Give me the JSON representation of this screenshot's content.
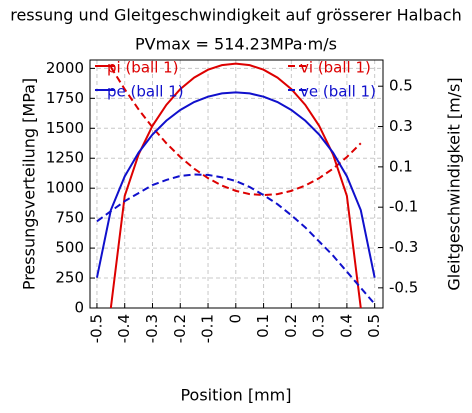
{
  "chart_data": {
    "type": "line",
    "title": "ressung und Gleitgeschwindigkeit auf grösserer Halbach",
    "subtitle": "PVmax = 514.23MPa·m/s",
    "x_label": "Position [mm]",
    "y_label": "Pressungsverteilung [MPa]",
    "y2_label": "Gleitgeschwindigkeit [m/s]",
    "x": [
      -0.5,
      -0.45,
      -0.4,
      -0.35,
      -0.3,
      -0.25,
      -0.2,
      -0.15,
      -0.1,
      -0.05,
      0,
      0.05,
      0.1,
      0.15,
      0.2,
      0.25,
      0.3,
      0.35,
      0.4,
      0.45,
      0.5
    ],
    "series": [
      {
        "name": "pi (ball 1)",
        "color": "#dd0000",
        "dash": false,
        "values": [
          null,
          0,
          935,
          1282,
          1521,
          1696,
          1827,
          1923,
          1989,
          2027,
          2040,
          2027,
          1989,
          1923,
          1827,
          1696,
          1521,
          1282,
          935,
          0,
          null
        ]
      },
      {
        "name": "vi (ball 1)",
        "color": "#dd0000",
        "dash": true,
        "axis": "y2",
        "values": [
          null,
          0.595,
          0.485,
          0.385,
          0.296,
          0.217,
          0.149,
          0.091,
          0.044,
          0.007,
          -0.019,
          -0.035,
          -0.04,
          -0.035,
          -0.019,
          0.007,
          0.044,
          0.091,
          0.149,
          0.217,
          null
        ]
      },
      {
        "name": "pe (ball 1)",
        "color": "#1010cc",
        "dash": false,
        "values": [
          253,
          817,
          1099,
          1297,
          1448,
          1564,
          1653,
          1719,
          1764,
          1791,
          1800,
          1791,
          1764,
          1719,
          1653,
          1564,
          1448,
          1297,
          1099,
          817,
          253
        ]
      },
      {
        "name": "ve (ball 1)",
        "color": "#1010cc",
        "dash": true,
        "axis": "y2",
        "values": [
          -0.17,
          -0.12,
          -0.07,
          -0.03,
          0.01,
          0.035,
          0.055,
          0.062,
          0.06,
          0.048,
          0.03,
          0,
          -0.04,
          -0.085,
          -0.14,
          -0.2,
          -0.27,
          -0.34,
          -0.42,
          -0.5,
          -0.58
        ]
      }
    ],
    "xlim": [
      -0.525,
      0.53
    ],
    "xticks": [
      -0.5,
      -0.4,
      -0.3,
      -0.2,
      -0.1,
      0,
      0.1,
      0.2,
      0.3,
      0.4,
      0.5
    ],
    "ylim": [
      0,
      2070
    ],
    "yticks": [
      0,
      250,
      500,
      750,
      1000,
      1250,
      1500,
      1750,
      2000
    ],
    "y2lim": [
      -0.6,
      0.63
    ],
    "y2ticks": [
      -0.5,
      -0.3,
      -0.1,
      0.1,
      0.3,
      0.5
    ],
    "grid": true
  }
}
